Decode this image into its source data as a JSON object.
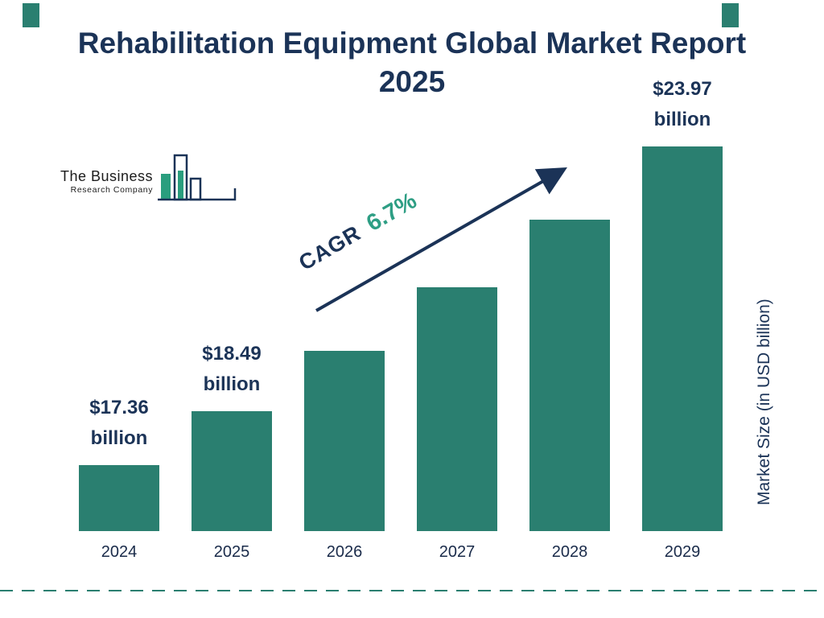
{
  "header": {
    "title": "Rehabilitation Equipment Global Market Report 2025"
  },
  "logo": {
    "line1": "The Business",
    "line2": "Research Company"
  },
  "colors": {
    "bar_teal": "#2A7F70",
    "navy": "#1B3357",
    "cagr_green": "#2E9E84"
  },
  "chart_data": {
    "type": "bar",
    "title": "Rehabilitation Equipment Global Market Report 2025",
    "categories": [
      "2024",
      "2025",
      "2026",
      "2027",
      "2028",
      "2029"
    ],
    "values": [
      17.36,
      18.49,
      19.73,
      21.05,
      22.46,
      23.97
    ],
    "bar_labels": [
      {
        "amount": "$17.36",
        "unit": "billion"
      },
      {
        "amount": "$18.49",
        "unit": "billion"
      },
      null,
      null,
      null,
      {
        "amount": "$23.97",
        "unit": "billion"
      }
    ],
    "xlabel": "",
    "ylabel": "Market Size (in USD billion)",
    "ylim": [
      16,
      23.97
    ],
    "grid": false,
    "legend": "none",
    "annotation": {
      "label": "CAGR",
      "value": "6.7%"
    }
  }
}
